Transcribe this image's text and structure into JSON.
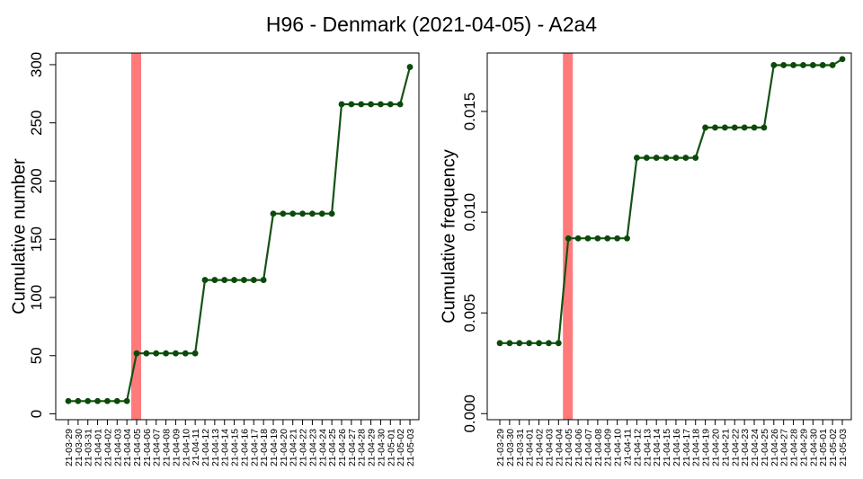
{
  "title": "H96 - Denmark (2021-04-05) - A2a4",
  "colors": {
    "line": "#145214",
    "point": "#0b4a0b",
    "highlight": "#ff7b7b"
  },
  "dates": [
    "21-03-29",
    "21-03-30",
    "21-03-31",
    "21-04-01",
    "21-04-02",
    "21-04-03",
    "21-04-04",
    "21-04-05",
    "21-04-06",
    "21-04-07",
    "21-04-08",
    "21-04-09",
    "21-04-10",
    "21-04-11",
    "21-04-12",
    "21-04-13",
    "21-04-14",
    "21-04-15",
    "21-04-16",
    "21-04-17",
    "21-04-18",
    "21-04-19",
    "21-04-20",
    "21-04-21",
    "21-04-22",
    "21-04-23",
    "21-04-24",
    "21-04-25",
    "21-04-26",
    "21-04-27",
    "21-04-28",
    "21-04-29",
    "21-04-30",
    "21-05-01",
    "21-05-02",
    "21-05-03"
  ],
  "chart_data": [
    {
      "type": "line",
      "ylabel": "Cumulative number",
      "ylim": [
        -5,
        310
      ],
      "yticks": [
        0,
        50,
        100,
        150,
        200,
        250,
        300
      ],
      "highlight_x": "21-04-05",
      "grid": false,
      "values": [
        11,
        11,
        11,
        11,
        11,
        11,
        11,
        52,
        52,
        52,
        52,
        52,
        52,
        52,
        115,
        115,
        115,
        115,
        115,
        115,
        115,
        172,
        172,
        172,
        172,
        172,
        172,
        172,
        266,
        266,
        266,
        266,
        266,
        266,
        266,
        298
      ]
    },
    {
      "type": "line",
      "ylabel": "Cumulative frequency",
      "ylim": [
        -0.0003,
        0.0179
      ],
      "yticks": [
        0.0,
        0.005,
        0.01,
        0.015
      ],
      "ytick_labels": [
        "0.000",
        "0.005",
        "0.010",
        "0.015"
      ],
      "highlight_x": "21-04-05",
      "grid": false,
      "values": [
        0.0035,
        0.0035,
        0.0035,
        0.0035,
        0.0035,
        0.0035,
        0.0035,
        0.0087,
        0.0087,
        0.0087,
        0.0087,
        0.0087,
        0.0087,
        0.0087,
        0.0127,
        0.0127,
        0.0127,
        0.0127,
        0.0127,
        0.0127,
        0.0127,
        0.0142,
        0.0142,
        0.0142,
        0.0142,
        0.0142,
        0.0142,
        0.0142,
        0.0173,
        0.0173,
        0.0173,
        0.0173,
        0.0173,
        0.0173,
        0.0173,
        0.0176
      ]
    }
  ]
}
